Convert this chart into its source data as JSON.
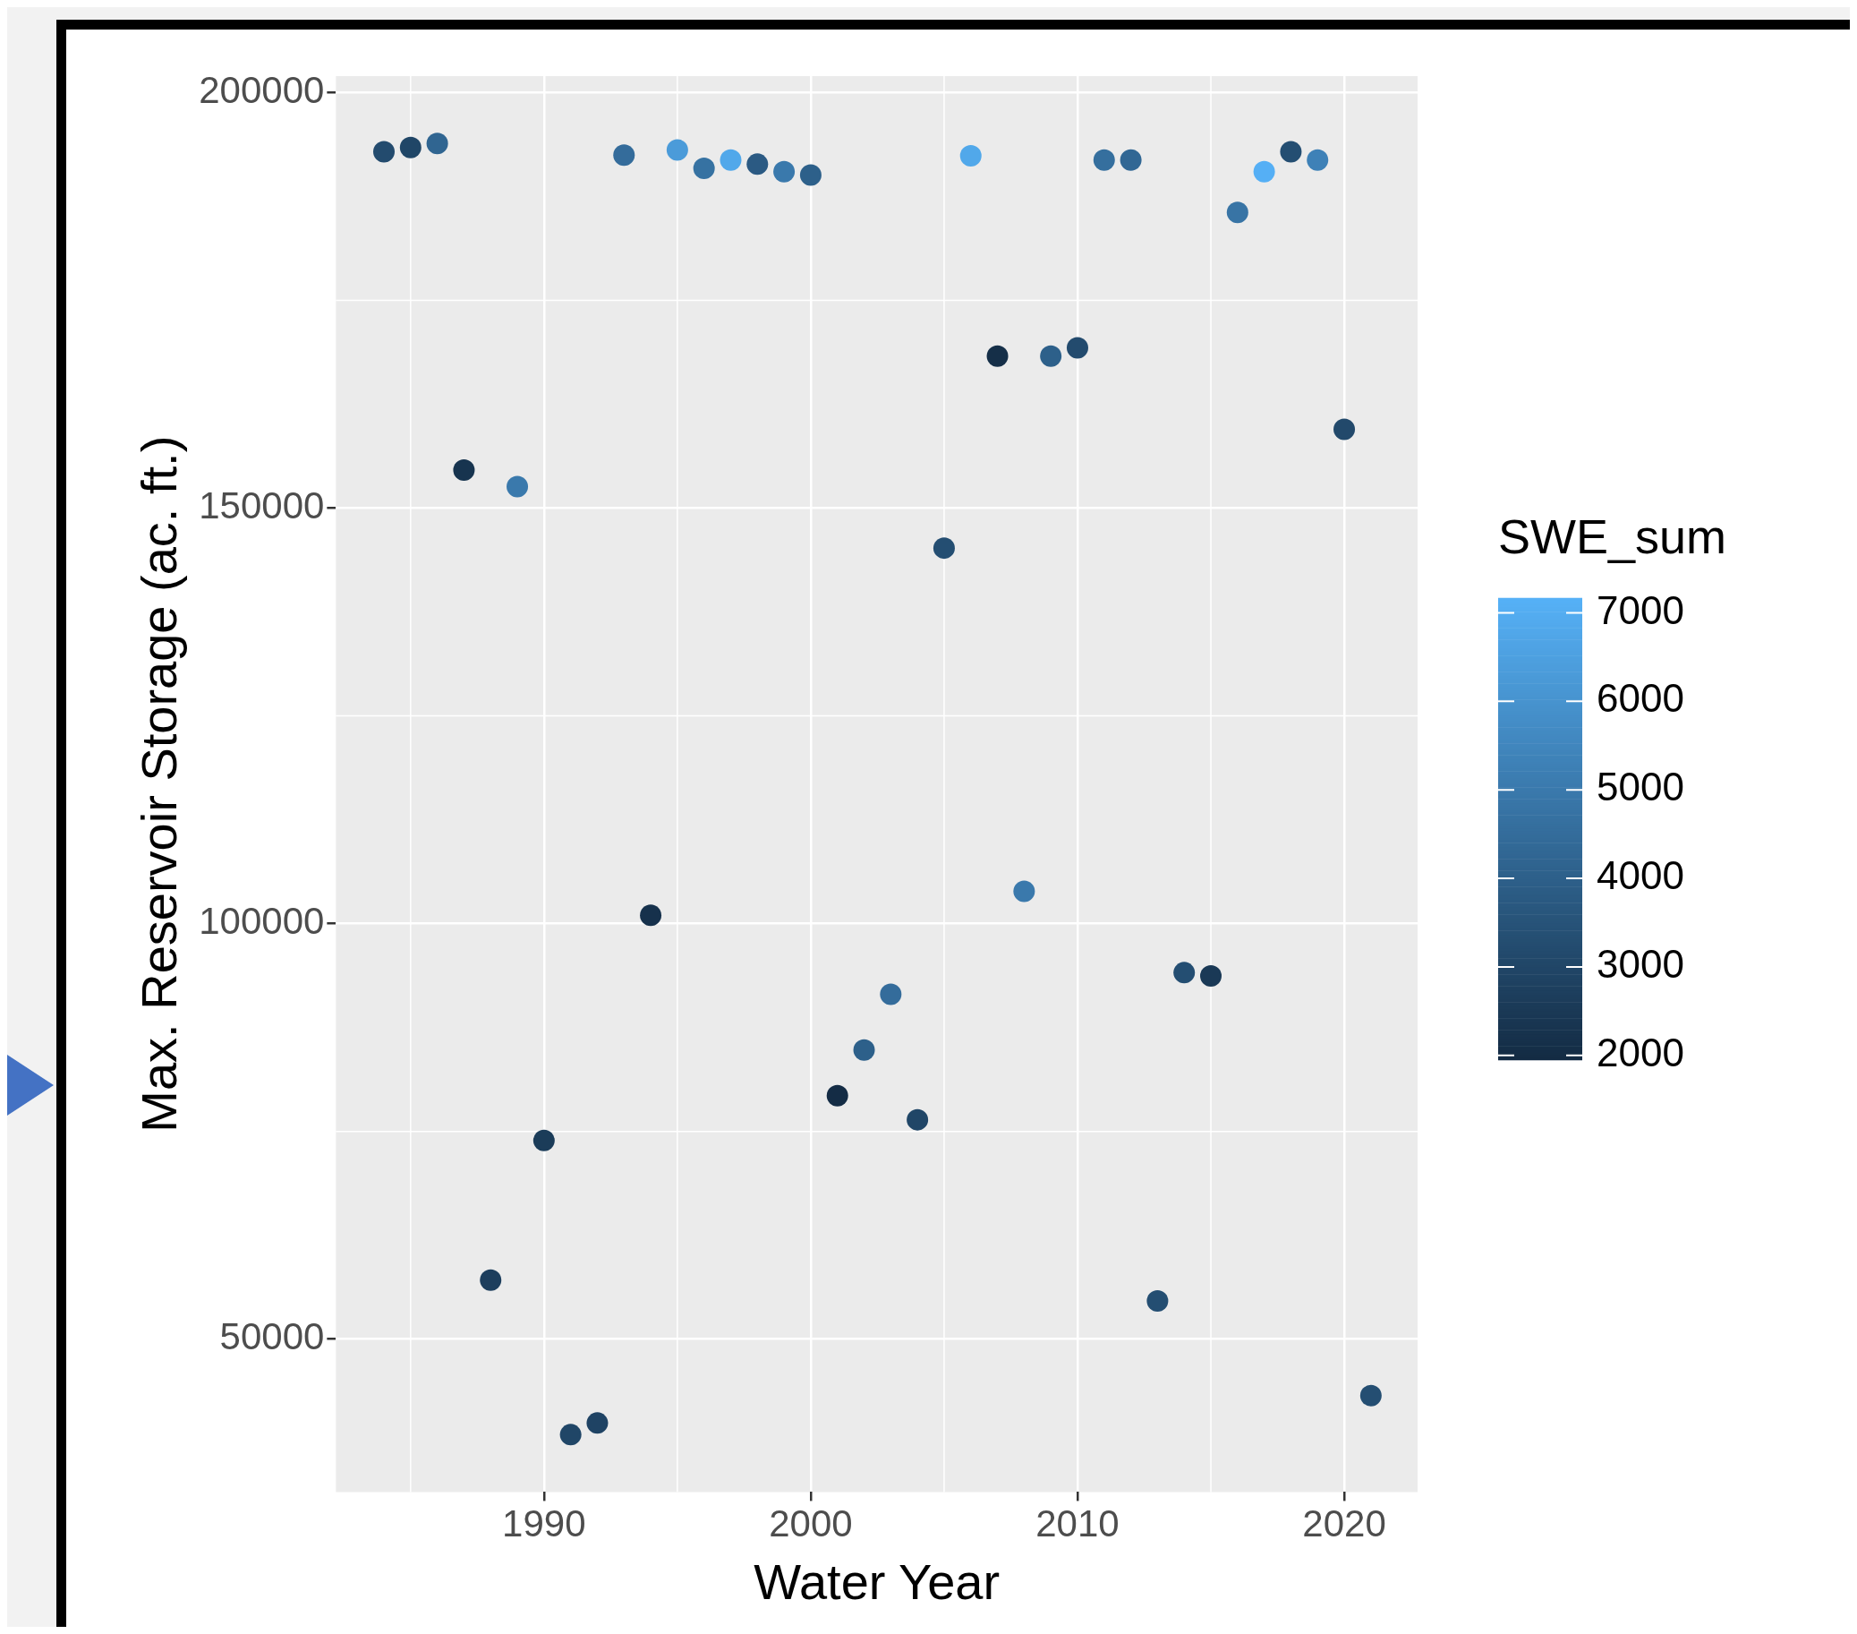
{
  "chart_data": {
    "type": "scatter",
    "xlabel": "Water Year",
    "ylabel": "Max. Reservoir Storage (ac. ft.)",
    "clabel": "SWE_sum",
    "x": [
      1984,
      1985,
      1986,
      1987,
      1988,
      1989,
      1990,
      1991,
      1992,
      1993,
      1994,
      1995,
      1996,
      1997,
      1998,
      1999,
      2000,
      2001,
      2002,
      2003,
      2004,
      2005,
      2006,
      2007,
      2008,
      2009,
      2010,
      2011,
      2012,
      2013,
      2014,
      2015,
      2016,
      2017,
      2018,
      2019,
      2020,
      2021
    ],
    "values": [
      192900,
      193400,
      193900,
      154600,
      57100,
      152600,
      73900,
      38500,
      39900,
      192500,
      101000,
      193100,
      190900,
      191900,
      191400,
      190500,
      190100,
      79300,
      84800,
      91500,
      76400,
      145200,
      192400,
      168300,
      103900,
      168300,
      169300,
      191900,
      191900,
      54600,
      94100,
      93700,
      185600,
      190500,
      192900,
      191900,
      159500,
      43200
    ],
    "cvalues": [
      3200,
      3000,
      4200,
      2300,
      2700,
      5000,
      2600,
      3000,
      2900,
      4500,
      2200,
      6300,
      4700,
      6800,
      3800,
      5000,
      4000,
      2000,
      4000,
      4500,
      3000,
      3300,
      6800,
      2100,
      5000,
      4000,
      3200,
      4600,
      4300,
      3300,
      3300,
      2500,
      4800,
      7100,
      3300,
      5300,
      3100,
      3300
    ],
    "xlim": [
      1982.2,
      2022.75
    ],
    "xticks": [
      1990,
      2000,
      2010,
      2020
    ],
    "ylim": [
      31600,
      202000
    ],
    "yticks": [
      50000,
      100000,
      150000,
      200000
    ],
    "clim": [
      1950,
      7170
    ],
    "cticks": [
      2000,
      3000,
      4000,
      5000,
      6000,
      7000
    ],
    "grid": true,
    "legend": false,
    "marker": "circle"
  }
}
